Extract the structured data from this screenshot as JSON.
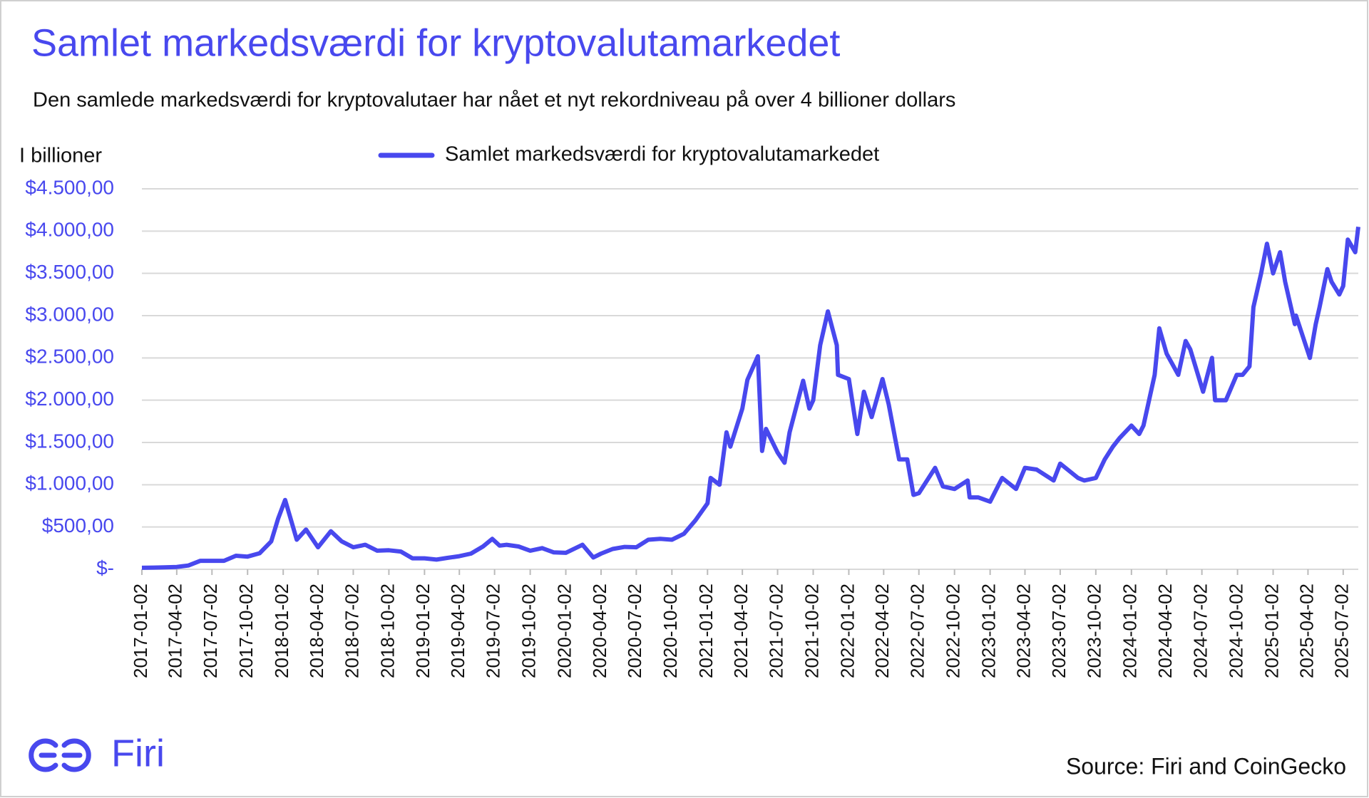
{
  "chart_data": {
    "type": "line",
    "title": "Samlet markedsværdi for kryptovalutamarkedet",
    "subtitle": "Den samlede markedsværdi for kryptovalutaer har nået et nyt rekordniveau på over 4 billioner dollars",
    "y_label": "I billioner",
    "x": [
      "2017-01-02",
      "2017-02-02",
      "2017-03-02",
      "2017-04-02",
      "2017-05-02",
      "2017-06-02",
      "2017-07-02",
      "2017-08-02",
      "2017-09-02",
      "2017-10-02",
      "2017-11-02",
      "2017-12-02",
      "2017-12-20",
      "2018-01-07",
      "2018-02-06",
      "2018-03-02",
      "2018-04-02",
      "2018-05-05",
      "2018-06-02",
      "2018-07-02",
      "2018-08-02",
      "2018-09-02",
      "2018-10-02",
      "2018-11-02",
      "2018-12-02",
      "2019-01-02",
      "2019-02-02",
      "2019-03-02",
      "2019-04-02",
      "2019-05-02",
      "2019-06-02",
      "2019-06-26",
      "2019-07-15",
      "2019-08-02",
      "2019-09-02",
      "2019-10-02",
      "2019-11-02",
      "2019-12-02",
      "2020-01-02",
      "2020-02-14",
      "2020-03-13",
      "2020-04-02",
      "2020-05-02",
      "2020-06-02",
      "2020-07-02",
      "2020-08-02",
      "2020-09-02",
      "2020-10-02",
      "2020-11-02",
      "2020-12-02",
      "2021-01-02",
      "2021-01-10",
      "2021-02-02",
      "2021-02-20",
      "2021-03-02",
      "2021-04-02",
      "2021-04-15",
      "2021-05-12",
      "2021-05-23",
      "2021-06-02",
      "2021-07-02",
      "2021-07-20",
      "2021-08-02",
      "2021-09-06",
      "2021-09-22",
      "2021-10-02",
      "2021-10-20",
      "2021-11-09",
      "2021-12-02",
      "2021-12-05",
      "2022-01-02",
      "2022-01-24",
      "2022-02-10",
      "2022-03-02",
      "2022-03-30",
      "2022-04-15",
      "2022-05-12",
      "2022-06-02",
      "2022-06-18",
      "2022-07-02",
      "2022-08-13",
      "2022-09-02",
      "2022-10-02",
      "2022-11-05",
      "2022-11-10",
      "2022-12-02",
      "2023-01-02",
      "2023-02-02",
      "2023-03-10",
      "2023-04-02",
      "2023-05-02",
      "2023-06-15",
      "2023-07-02",
      "2023-08-17",
      "2023-09-02",
      "2023-10-02",
      "2023-10-25",
      "2023-11-15",
      "2023-12-02",
      "2024-01-02",
      "2024-01-22",
      "2024-02-02",
      "2024-03-02",
      "2024-03-14",
      "2024-04-02",
      "2024-05-02",
      "2024-05-21",
      "2024-06-02",
      "2024-07-05",
      "2024-07-28",
      "2024-08-05",
      "2024-09-02",
      "2024-09-30",
      "2024-10-15",
      "2024-11-02",
      "2024-11-12",
      "2024-12-02",
      "2024-12-17",
      "2025-01-02",
      "2025-01-20",
      "2025-02-02",
      "2025-02-27",
      "2025-03-02",
      "2025-04-07",
      "2025-04-22",
      "2025-05-02",
      "2025-05-22",
      "2025-06-02",
      "2025-06-22",
      "2025-07-02",
      "2025-07-14",
      "2025-08-02",
      "2025-08-10"
    ],
    "series": [
      {
        "name": "Samlet markedsværdi for kryptovalutamarkedet",
        "color": "#4848ee",
        "values": [
          18,
          20,
          24,
          28,
          45,
          100,
          100,
          100,
          160,
          150,
          190,
          330,
          600,
          820,
          350,
          470,
          260,
          450,
          330,
          260,
          290,
          220,
          225,
          210,
          130,
          130,
          115,
          135,
          155,
          185,
          270,
          360,
          280,
          290,
          270,
          220,
          250,
          200,
          195,
          290,
          140,
          185,
          240,
          265,
          260,
          350,
          360,
          350,
          420,
          580,
          780,
          1080,
          1000,
          1620,
          1450,
          1900,
          2240,
          2520,
          1400,
          1660,
          1380,
          1260,
          1620,
          2230,
          1900,
          2000,
          2650,
          3050,
          2650,
          2300,
          2250,
          1600,
          2100,
          1800,
          2250,
          1950,
          1300,
          1300,
          880,
          900,
          1200,
          980,
          950,
          1050,
          850,
          850,
          800,
          1080,
          950,
          1200,
          1180,
          1050,
          1250,
          1080,
          1050,
          1080,
          1300,
          1450,
          1550,
          1700,
          1600,
          1700,
          2300,
          2850,
          2550,
          2300,
          2700,
          2600,
          2100,
          2500,
          2000,
          2000,
          2300,
          2300,
          2400,
          3100,
          3500,
          3850,
          3500,
          3750,
          3400,
          2900,
          3000,
          2500,
          2900,
          3100,
          3550,
          3400,
          3250,
          3350,
          3900,
          3750,
          4050
        ]
      }
    ],
    "xlim": [
      "2017-01-02",
      "2025-08-10"
    ],
    "xticks": [
      "2017-01-02",
      "2017-04-02",
      "2017-07-02",
      "2017-10-02",
      "2018-01-02",
      "2018-04-02",
      "2018-07-02",
      "2018-10-02",
      "2019-01-02",
      "2019-04-02",
      "2019-07-02",
      "2019-10-02",
      "2020-01-02",
      "2020-04-02",
      "2020-07-02",
      "2020-10-02",
      "2021-01-02",
      "2021-04-02",
      "2021-07-02",
      "2021-10-02",
      "2022-01-02",
      "2022-04-02",
      "2022-07-02",
      "2022-10-02",
      "2023-01-02",
      "2023-04-02",
      "2023-07-02",
      "2023-10-02",
      "2024-01-02",
      "2024-04-02",
      "2024-07-02",
      "2024-10-02",
      "2025-01-02",
      "2025-04-02",
      "2025-07-02"
    ],
    "ylim": [
      0,
      4500
    ],
    "yticks": [
      {
        "value": 0,
        "label": "$-"
      },
      {
        "value": 500,
        "label": "$500,00"
      },
      {
        "value": 1000,
        "label": "$1.000,00"
      },
      {
        "value": 1500,
        "label": "$1.500,00"
      },
      {
        "value": 2000,
        "label": "$2.000,00"
      },
      {
        "value": 2500,
        "label": "$2.500,00"
      },
      {
        "value": 3000,
        "label": "$3.000,00"
      },
      {
        "value": 3500,
        "label": "$3.500,00"
      },
      {
        "value": 4000,
        "label": "$4.000,00"
      },
      {
        "value": 4500,
        "label": "$4.500,00"
      }
    ],
    "grid": true,
    "legend": "top"
  },
  "footer": {
    "logo": "Firi",
    "source": "Source: Firi and CoinGecko"
  }
}
